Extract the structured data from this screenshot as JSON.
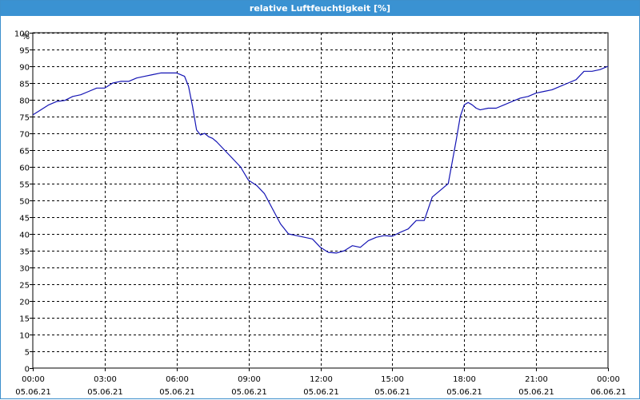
{
  "window": {
    "title": "relative Luftfeuchtigkeit [%]"
  },
  "colors": {
    "title_bar": "#3a92d2",
    "series_line": "#1414b4",
    "grid": "#000000"
  },
  "chart_data": {
    "type": "line",
    "title": "relative Luftfeuchtigkeit [%]",
    "ylabel": "%",
    "xlabel": "",
    "ylim": [
      0,
      100
    ],
    "y_ticks": [
      0,
      5,
      10,
      15,
      20,
      25,
      30,
      35,
      40,
      45,
      50,
      55,
      60,
      65,
      70,
      75,
      80,
      85,
      90,
      95,
      100
    ],
    "x_ticks": [
      {
        "time": "00:00",
        "date": "05.06.21"
      },
      {
        "time": "03:00",
        "date": "05.06.21"
      },
      {
        "time": "06:00",
        "date": "05.06.21"
      },
      {
        "time": "09:00",
        "date": "05.06.21"
      },
      {
        "time": "12:00",
        "date": "05.06.21"
      },
      {
        "time": "15:00",
        "date": "05.06.21"
      },
      {
        "time": "18:00",
        "date": "05.06.21"
      },
      {
        "time": "21:00",
        "date": "05.06.21"
      },
      {
        "time": "00:00",
        "date": "06.06.21"
      }
    ],
    "grid": true,
    "legend": "none",
    "series": [
      {
        "x": [
          "00:00",
          "00:20",
          "00:40",
          "01:00",
          "01:20",
          "01:40",
          "02:00",
          "02:20",
          "02:40",
          "03:00",
          "03:20",
          "03:40",
          "04:00",
          "04:20",
          "04:40",
          "05:00",
          "05:20",
          "05:40",
          "06:00",
          "06:20",
          "06:30",
          "06:40",
          "06:50",
          "07:00",
          "07:10",
          "07:20",
          "07:30",
          "07:40",
          "08:00",
          "08:20",
          "08:40",
          "09:00",
          "09:20",
          "09:40",
          "10:00",
          "10:20",
          "10:40",
          "11:00",
          "11:20",
          "11:40",
          "12:00",
          "12:20",
          "12:40",
          "13:00",
          "13:20",
          "13:40",
          "14:00",
          "14:20",
          "14:40",
          "15:00",
          "15:20",
          "15:40",
          "16:00",
          "16:20",
          "16:40",
          "17:00",
          "17:10",
          "17:20",
          "17:40",
          "17:50",
          "18:00",
          "18:10",
          "18:20",
          "18:30",
          "18:40",
          "19:00",
          "19:20",
          "19:40",
          "20:00",
          "20:20",
          "20:40",
          "21:00",
          "21:20",
          "21:40",
          "22:00",
          "22:20",
          "22:40",
          "23:00",
          "23:20",
          "23:40",
          "24:00"
        ],
        "values": [
          75.5,
          77,
          78.5,
          79.5,
          79.8,
          81,
          81.5,
          82.5,
          83.5,
          83.5,
          85,
          85.5,
          85.5,
          86.5,
          87,
          87.5,
          88,
          88,
          88,
          87,
          84,
          78,
          71,
          69.5,
          70,
          69,
          68.5,
          67.5,
          65,
          62.5,
          60,
          56,
          54.5,
          52,
          47.5,
          43,
          40,
          39.5,
          39,
          38.5,
          36,
          34.5,
          34.3,
          35,
          36.5,
          36,
          38,
          39,
          39.5,
          39.3,
          40.5,
          41.5,
          44,
          44,
          51,
          53,
          54,
          55,
          68,
          75,
          78.5,
          79.2,
          78.5,
          77.5,
          77,
          77.5,
          77.5,
          78.5,
          79.5,
          80.5,
          81,
          82,
          82.5,
          83,
          84,
          85,
          86,
          88.5,
          88.5,
          89,
          90
        ]
      }
    ]
  }
}
